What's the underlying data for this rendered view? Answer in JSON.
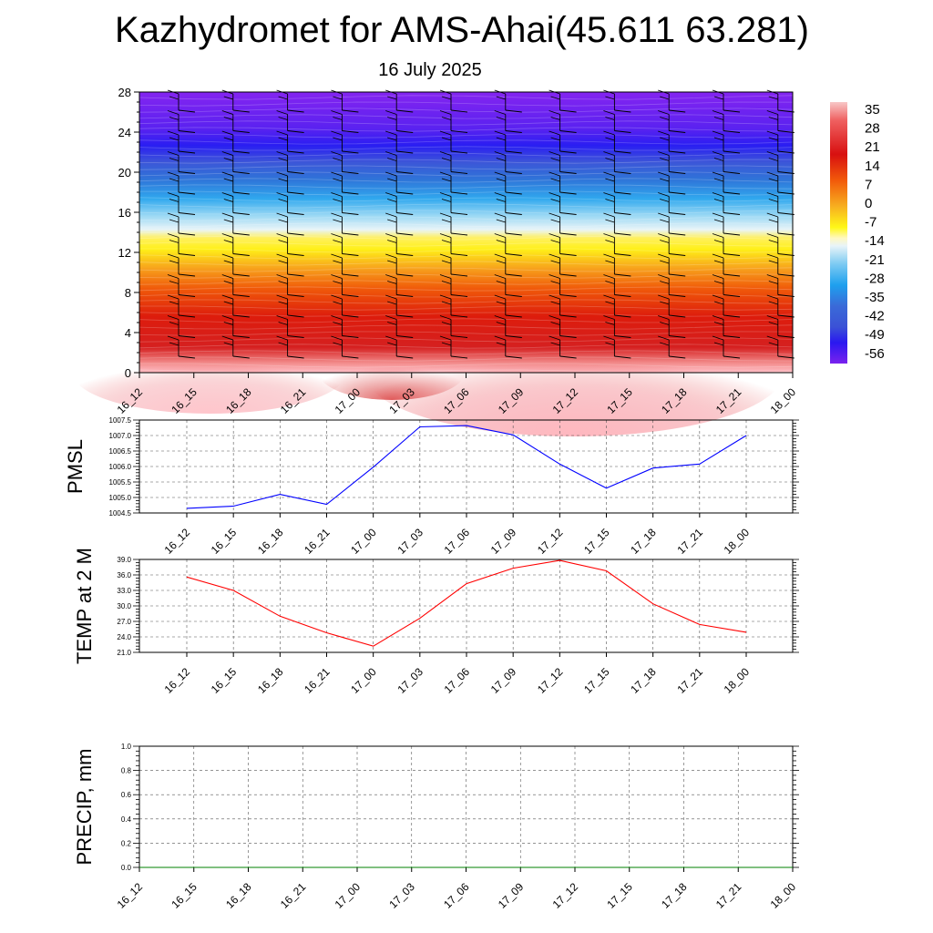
{
  "header": {
    "title": "Kazhydromet for AMS-Ahai(45.611 63.281)",
    "date": "16 July 2025"
  },
  "chart_data": [
    {
      "type": "heatmap",
      "name": "temperature-wind-section",
      "x_ticks": [
        "16_12",
        "16_15",
        "16_18",
        "16_21",
        "17_00",
        "17_03",
        "17_06",
        "17_09",
        "17_12",
        "17_15",
        "17_18",
        "17_21",
        "18_00"
      ],
      "y_ticks": [
        "0",
        "4",
        "8",
        "12",
        "16",
        "20",
        "24",
        "28"
      ],
      "ylim": [
        0,
        28
      ],
      "colorbar": {
        "labels": [
          "35",
          "28",
          "21",
          "14",
          "7",
          "0",
          "-7",
          "-14",
          "-21",
          "-28",
          "-35",
          "-42",
          "-49",
          "-56"
        ],
        "range": [
          -60,
          38
        ]
      },
      "wind_barbs": true
    },
    {
      "type": "line",
      "name": "pmsl",
      "ylabel": "PMSL",
      "x": [
        "16_12",
        "16_15",
        "16_18",
        "16_21",
        "17_00",
        "17_03",
        "17_06",
        "17_09",
        "17_12",
        "17_15",
        "17_18",
        "17_21",
        "18_00"
      ],
      "values": [
        1004.65,
        1004.72,
        1005.1,
        1004.78,
        1005.98,
        1007.28,
        1007.32,
        1007.02,
        1006.08,
        1005.3,
        1005.95,
        1006.08,
        1007.0
      ],
      "ylim": [
        1004.5,
        1007.5
      ],
      "y_ticks": [
        "1004.5",
        "1005.0",
        "1005.5",
        "1006.0",
        "1006.5",
        "1007.0",
        "1007.5"
      ],
      "color": "#0000ff",
      "grid": true
    },
    {
      "type": "line",
      "name": "temp2m",
      "ylabel": "TEMP at 2 M",
      "x": [
        "16_12",
        "16_15",
        "16_18",
        "16_21",
        "17_00",
        "17_03",
        "17_06",
        "17_09",
        "17_12",
        "17_15",
        "17_18",
        "17_21",
        "18_00"
      ],
      "values": [
        35.6,
        33.0,
        28.0,
        24.8,
        22.2,
        27.6,
        34.3,
        37.3,
        38.8,
        36.8,
        30.4,
        26.4,
        24.9
      ],
      "ylim": [
        21.0,
        39.0
      ],
      "y_ticks": [
        "21.0",
        "24.0",
        "27.0",
        "30.0",
        "33.0",
        "36.0",
        "39.0"
      ],
      "color": "#ff0000",
      "grid": true
    },
    {
      "type": "line",
      "name": "precip",
      "ylabel": "PRECIP, mm",
      "x": [
        "16_12",
        "16_15",
        "16_18",
        "16_21",
        "17_00",
        "17_03",
        "17_06",
        "17_09",
        "17_12",
        "17_15",
        "17_18",
        "17_21",
        "18_00"
      ],
      "values": [
        0,
        0,
        0,
        0,
        0,
        0,
        0,
        0,
        0,
        0,
        0,
        0,
        0
      ],
      "ylim": [
        0.0,
        1.0
      ],
      "y_ticks": [
        "0.0",
        "0.2",
        "0.4",
        "0.6",
        "0.8",
        "1.0"
      ],
      "color": "#008000",
      "grid": true
    }
  ]
}
